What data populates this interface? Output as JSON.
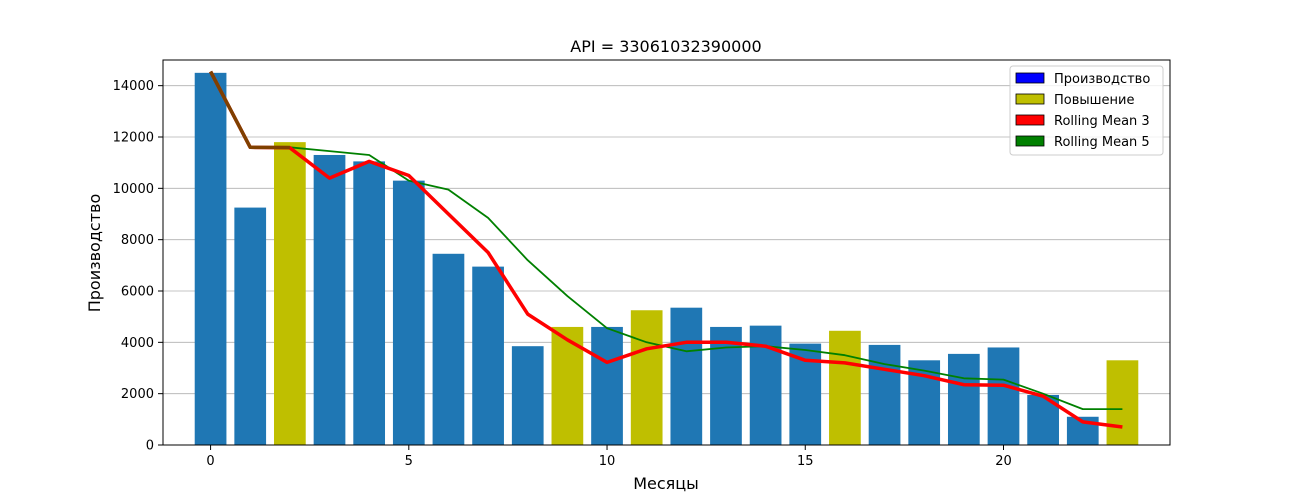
{
  "chart_data": {
    "type": "bar",
    "title": "API = 33061032390000",
    "xlabel": "Месяцы",
    "ylabel": "Производство",
    "xlim": [
      -1.2,
      24.2
    ],
    "ylim": [
      0,
      15000
    ],
    "xticks": [
      0,
      5,
      10,
      15,
      20
    ],
    "yticks": [
      0,
      2000,
      4000,
      6000,
      8000,
      10000,
      12000,
      14000
    ],
    "grid": "y",
    "legend_position": "top-right",
    "x": [
      0,
      1,
      2,
      3,
      4,
      5,
      6,
      7,
      8,
      9,
      10,
      11,
      12,
      13,
      14,
      15,
      16,
      17,
      18,
      19,
      20,
      21,
      22,
      23
    ],
    "bars": {
      "values": [
        14500,
        9250,
        11800,
        11300,
        11050,
        10300,
        7450,
        6950,
        3850,
        4600,
        4600,
        5250,
        5350,
        4600,
        4650,
        3950,
        4450,
        3900,
        3300,
        3550,
        3800,
        1950,
        1100,
        3300
      ],
      "highlight": [
        false,
        false,
        true,
        false,
        false,
        false,
        false,
        false,
        false,
        true,
        false,
        true,
        false,
        false,
        false,
        false,
        true,
        false,
        false,
        false,
        false,
        false,
        false,
        true
      ]
    },
    "series": [
      {
        "name": "Rolling Mean 3",
        "kind": "line",
        "color": "#ff0000",
        "values": [
          14550,
          11600,
          11580,
          10400,
          11050,
          10500,
          9000,
          7500,
          5100,
          4100,
          3220,
          3750,
          4000,
          4000,
          3850,
          3300,
          3200,
          2950,
          2700,
          2350,
          2330,
          1900,
          900,
          700
        ]
      },
      {
        "name": "Rolling Mean 5",
        "kind": "line",
        "color": "#008000",
        "values": [
          14550,
          11600,
          11600,
          11450,
          11300,
          10300,
          9950,
          8850,
          7200,
          5800,
          4550,
          4000,
          3650,
          3800,
          3850,
          3700,
          3500,
          3150,
          2900,
          2600,
          2550,
          2000,
          1400,
          1400
        ]
      }
    ],
    "legend": [
      {
        "label": "Производство",
        "color": "#0000ff"
      },
      {
        "label": "Повышение",
        "color": "#bfbf00"
      },
      {
        "label": "Rolling Mean 3",
        "color": "#ff0000"
      },
      {
        "label": "Rolling Mean 5",
        "color": "#008000"
      }
    ],
    "colors": {
      "bar": "#1f77b4",
      "bar_highlight": "#bfbf00",
      "grid": "#b0b0b0",
      "axes": "#000000"
    }
  }
}
